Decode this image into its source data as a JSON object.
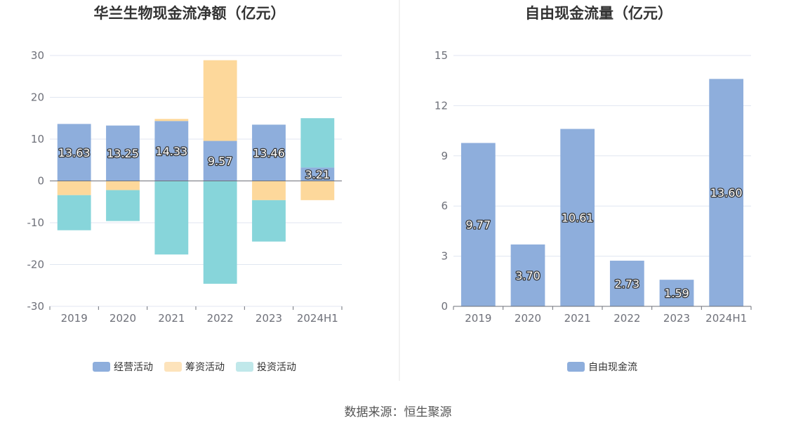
{
  "chart_data": [
    {
      "type": "bar",
      "stacked": true,
      "title": "华兰生物现金流净额（亿元）",
      "categories": [
        "2019",
        "2020",
        "2021",
        "2022",
        "2023",
        "2024H1"
      ],
      "ylim": [
        -30,
        30
      ],
      "yticks": [
        "30",
        "20",
        "10",
        "0",
        "-10",
        "-20",
        "-30"
      ],
      "ytick_values": [
        30,
        20,
        10,
        0,
        -10,
        -20,
        -30
      ],
      "series": [
        {
          "name": "经营活动",
          "color": "#8eaedc",
          "values": [
            13.63,
            13.25,
            14.33,
            9.57,
            13.46,
            3.21
          ],
          "labels": [
            "13.63",
            "13.25",
            "14.33",
            "9.57",
            "13.46",
            "3.21"
          ]
        },
        {
          "name": "筹资活动",
          "color": "#fdd89b",
          "values": [
            -3.4,
            -2.2,
            0.5,
            19.3,
            -4.6,
            -4.6
          ]
        },
        {
          "name": "投资活动",
          "color": "#87d5da",
          "values": [
            -8.4,
            -7.4,
            -17.6,
            -24.6,
            -9.9,
            11.8
          ]
        }
      ],
      "legend_colors": [
        "#8eaedc",
        "#fde3bb",
        "#c0e8ea"
      ],
      "legend_position": "bottom"
    },
    {
      "type": "bar",
      "title": "自由现金流量（亿元）",
      "categories": [
        "2019",
        "2020",
        "2021",
        "2022",
        "2023",
        "2024H1"
      ],
      "ylim": [
        0,
        15
      ],
      "yticks": [
        "15",
        "12",
        "9",
        "6",
        "3",
        "0"
      ],
      "ytick_values": [
        15,
        12,
        9,
        6,
        3,
        0
      ],
      "series": [
        {
          "name": "自由现金流",
          "color": "#8eaedc",
          "values": [
            9.77,
            3.7,
            10.61,
            2.73,
            1.59,
            13.6
          ],
          "labels": [
            "9.77",
            "3.70",
            "10.61",
            "2.73",
            "1.59",
            "13.60"
          ]
        }
      ],
      "legend_colors": [
        "#8eaedc"
      ],
      "legend_position": "bottom"
    }
  ],
  "source": "数据来源：恒生聚源"
}
